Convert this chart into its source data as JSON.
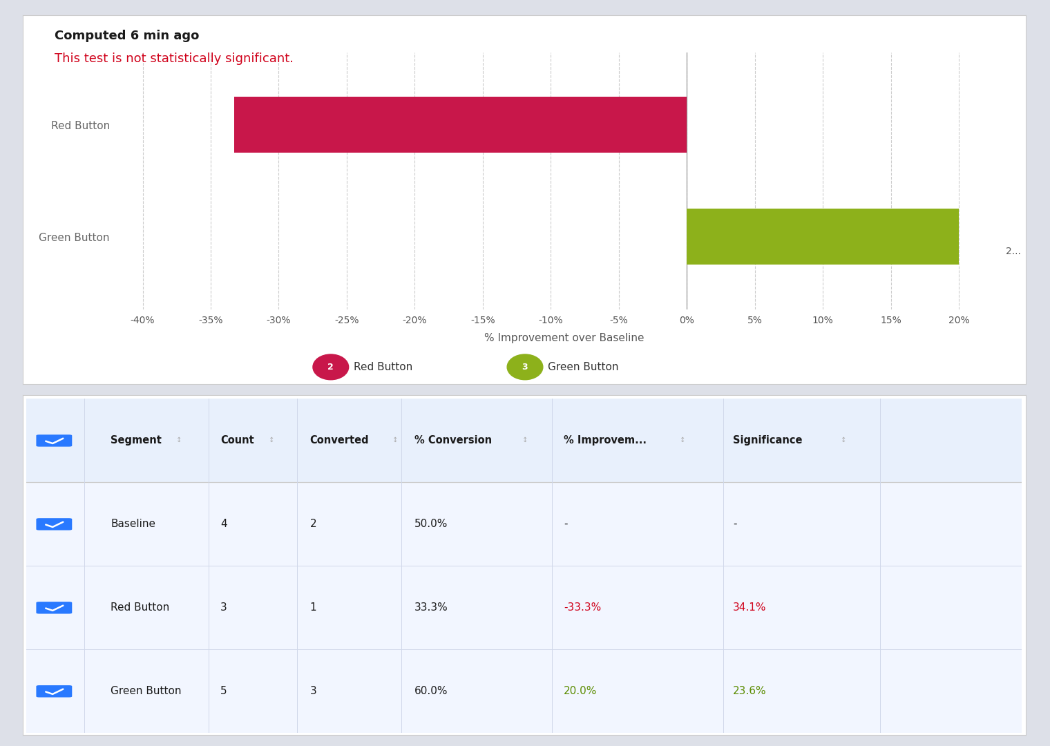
{
  "title_text": "Computed 6 min ago",
  "subtitle_text": "This test is not statistically significant.",
  "title_color": "#1a1a1a",
  "subtitle_color": "#d0021b",
  "bar_labels": [
    "Red Button",
    "Green Button"
  ],
  "bar_values": [
    -33.3,
    20.0
  ],
  "bar_colors": [
    "#c8174a",
    "#8db11b"
  ],
  "xlim": [
    -42,
    24
  ],
  "xticks": [
    -40,
    -35,
    -30,
    -25,
    -20,
    -15,
    -10,
    -5,
    0,
    5,
    10,
    15,
    20
  ],
  "xlabel": "% Improvement over Baseline",
  "legend_labels": [
    "Red Button",
    "Green Button"
  ],
  "legend_numbers": [
    "2",
    "3"
  ],
  "legend_colors": [
    "#c8174a",
    "#8db11b"
  ],
  "chart_bg": "#ffffff",
  "grid_color": "#cccccc",
  "table_header": [
    "Segment",
    "Count",
    "Converted",
    "% Conversion",
    "% Improvem...",
    "Significance"
  ],
  "table_rows": [
    [
      "Baseline",
      "4",
      "2",
      "50.0%",
      "-",
      "-"
    ],
    [
      "Red Button",
      "3",
      "1",
      "33.3%",
      "-33.3%",
      "34.1%"
    ],
    [
      "Green Button",
      "5",
      "3",
      "60.0%",
      "20.0%",
      "23.6%"
    ]
  ],
  "table_improvement_colors": [
    "#1a1a1a",
    "#d0021b",
    "#5b8c00"
  ],
  "table_significance_colors": [
    "#1a1a1a",
    "#d0021b",
    "#5b8c00"
  ],
  "outer_bg": "#dde0e8",
  "panel_bg": "#ffffff",
  "bar_height": 0.5
}
